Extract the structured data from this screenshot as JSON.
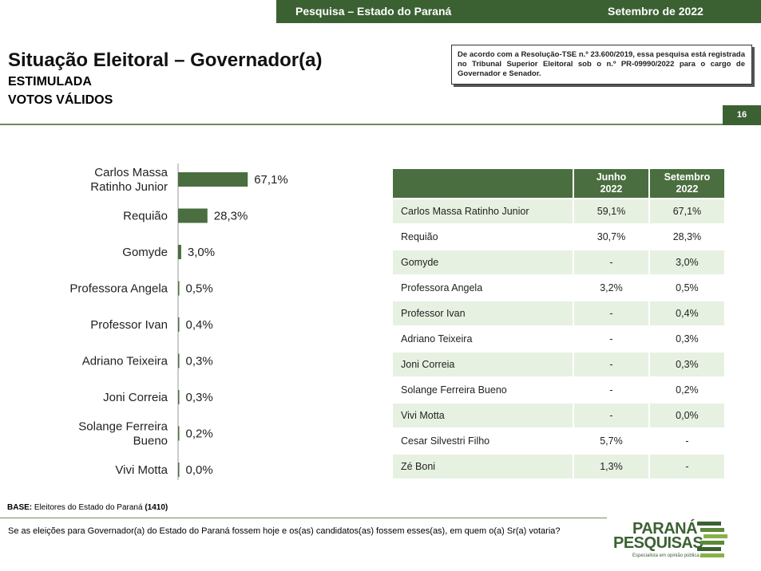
{
  "header": {
    "survey_label": "Pesquisa – Estado do Paraná",
    "date_label": "Setembro de 2022"
  },
  "title": "Situação Eleitoral – Governador(a)",
  "subtitle_1": "ESTIMULADA",
  "subtitle_2": "VOTOS VÁLIDOS",
  "notice": "De acordo com a Resolução-TSE n.º 23.600/2019, essa pesquisa está registrada no Tribunal Superior Eleitoral sob o n.º PR-09990/2022 para o cargo de Governador e Senador.",
  "page_number": "16",
  "colors": {
    "brand_green": "#3b6133",
    "bar_green": "#4a6e3f",
    "row_alt": "#e7f1e1"
  },
  "chart_data": {
    "type": "bar",
    "orientation": "horizontal",
    "categories": [
      "Carlos Massa Ratinho Junior",
      "Requião",
      "Gomyde",
      "Professora Angela",
      "Professor Ivan",
      "Adriano Teixeira",
      "Joni Correia",
      "Solange Ferreira Bueno",
      "Vivi Motta"
    ],
    "category_lines": [
      [
        "Carlos Massa",
        "Ratinho Junior"
      ],
      [
        "Requião"
      ],
      [
        "Gomyde"
      ],
      [
        "Professora Angela"
      ],
      [
        "Professor Ivan"
      ],
      [
        "Adriano Teixeira"
      ],
      [
        "Joni Correia"
      ],
      [
        "Solange Ferreira",
        "Bueno"
      ],
      [
        "Vivi Motta"
      ]
    ],
    "values": [
      67.1,
      28.3,
      3.0,
      0.5,
      0.4,
      0.3,
      0.3,
      0.2,
      0.0
    ],
    "value_labels": [
      "67,1%",
      "28,3%",
      "3,0%",
      "0,5%",
      "0,4%",
      "0,3%",
      "0,3%",
      "0,2%",
      "0,0%"
    ],
    "xlim": [
      0,
      100
    ],
    "grid": false,
    "legend": "none"
  },
  "table": {
    "columns": [
      "Junho\n2022",
      "Setembro\n2022"
    ],
    "column_lines": [
      [
        "Junho",
        "2022"
      ],
      [
        "Setembro",
        "2022"
      ]
    ],
    "rows": [
      {
        "name": "Carlos Massa Ratinho Junior",
        "jun": "59,1%",
        "set": "67,1%"
      },
      {
        "name": "Requião",
        "jun": "30,7%",
        "set": "28,3%"
      },
      {
        "name": "Gomyde",
        "jun": "-",
        "set": "3,0%"
      },
      {
        "name": "Professora Angela",
        "jun": "3,2%",
        "set": "0,5%"
      },
      {
        "name": "Professor Ivan",
        "jun": "-",
        "set": "0,4%"
      },
      {
        "name": "Adriano Teixeira",
        "jun": "-",
        "set": "0,3%"
      },
      {
        "name": "Joni Correia",
        "jun": "-",
        "set": "0,3%"
      },
      {
        "name": "Solange Ferreira Bueno",
        "jun": "-",
        "set": "0,2%"
      },
      {
        "name": "Vivi Motta",
        "jun": "-",
        "set": "0,0%"
      },
      {
        "name": "Cesar Silvestri Filho",
        "jun": "5,7%",
        "set": "-"
      },
      {
        "name": "Zé Boni",
        "jun": "1,3%",
        "set": "-"
      }
    ]
  },
  "footer": {
    "base_label": "BASE:",
    "base_text": " Eleitores do Estado do Paraná ",
    "base_count": "(1410)",
    "question": "Se as eleições para Governador(a) do Estado do Paraná fossem hoje e os(as) candidatos(as) fossem esses(as), em quem o(a) Sr(a) votaria?"
  },
  "logo": {
    "line1": "PARANÁ",
    "line2": "PESQUISAS",
    "tagline": "Especialista em opinião pública."
  }
}
